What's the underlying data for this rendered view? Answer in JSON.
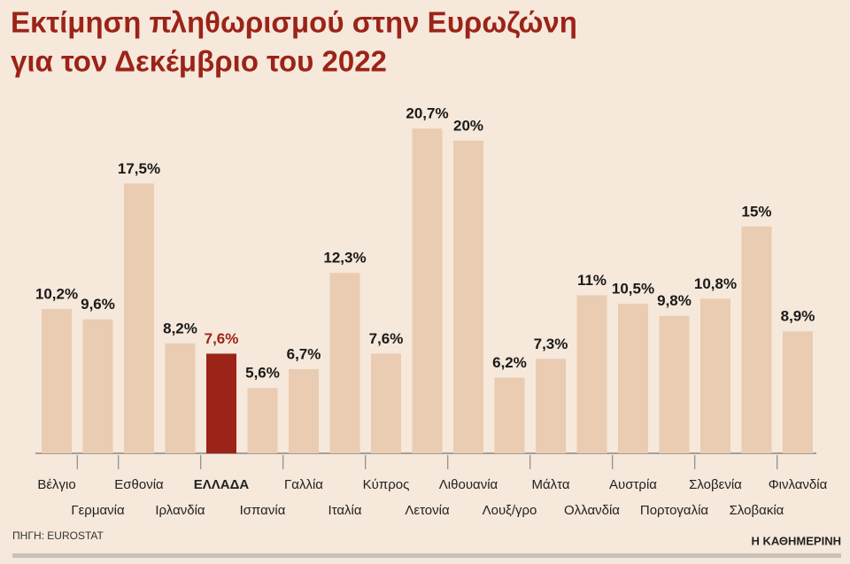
{
  "chart_data": {
    "type": "bar",
    "title": [
      "Εκτίμηση πληθωρισμού στην Ευρωζώνη",
      "για τον Δεκέμβριο του 2022"
    ],
    "categories": [
      "Βέλγιο",
      "Γερμανία",
      "Εσθονία",
      "Ιρλανδία",
      "ΕΛΛΑΔΑ",
      "Ισπανία",
      "Γαλλία",
      "Ιταλία",
      "Κύπρος",
      "Λετονία",
      "Λιθουανία",
      "Λουξ/γρο",
      "Μάλτα",
      "Ολλανδία",
      "Αυστρία",
      "Πορτογαλία",
      "Σλοβενία",
      "Σλοβακία",
      "Φινλανδία"
    ],
    "values": [
      10.2,
      9.6,
      17.5,
      8.2,
      7.6,
      5.6,
      6.7,
      12.3,
      7.6,
      20.7,
      20,
      6.2,
      7.3,
      11,
      10.5,
      9.8,
      10.8,
      15,
      8.9
    ],
    "value_labels": [
      "10,2%",
      "9,6%",
      "17,5%",
      "8,2%",
      "7,6%",
      "5,6%",
      "6,7%",
      "12,3%",
      "7,6%",
      "20,7%",
      "20%",
      "6,2%",
      "7,3%",
      "11%",
      "10,5%",
      "9,8%",
      "10,8%",
      "15%",
      "8,9%"
    ],
    "colors": [
      "#e9ccb2",
      "#e9ccb2",
      "#e9ccb2",
      "#e9ccb2",
      "#9b2318",
      "#e9ccb2",
      "#e9ccb2",
      "#e9ccb2",
      "#e9ccb2",
      "#e9ccb2",
      "#e9ccb2",
      "#e9ccb2",
      "#e9ccb2",
      "#e9ccb2",
      "#e9ccb2",
      "#e9ccb2",
      "#e9ccb2",
      "#e9ccb2",
      "#e9ccb2"
    ],
    "ylim": [
      1.8,
      22
    ],
    "source": "ΠΗΓΗ: EUROSTAT",
    "brand": "Η ΚΑΘΗΜΕΡΙΝΗ"
  }
}
